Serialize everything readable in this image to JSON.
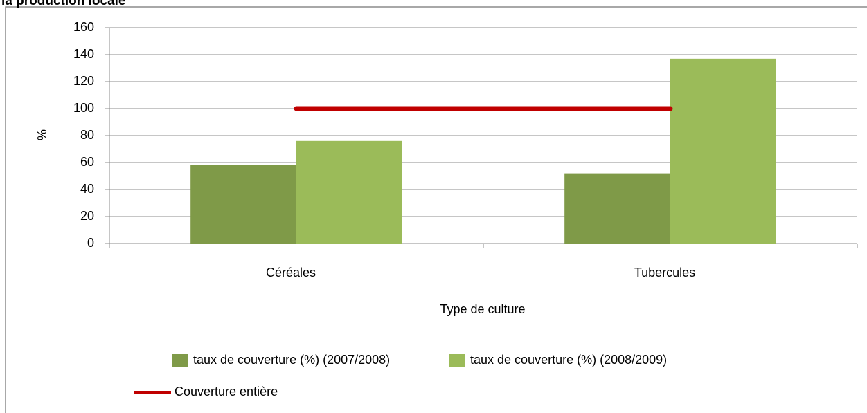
{
  "chart_data": {
    "type": "bar",
    "title": "la production locale",
    "categories": [
      "Céréales",
      "Tubercules"
    ],
    "series": [
      {
        "name": "taux de couverture (%) (2007/2008)",
        "color": "#7f9a48",
        "values": [
          58,
          52
        ]
      },
      {
        "name": "taux de couverture (%) (2008/2009)",
        "color": "#9bbb59",
        "values": [
          76,
          137
        ]
      },
      {
        "name": "Couverture entière",
        "type": "line",
        "color": "#c00000",
        "values": [
          100,
          100
        ]
      }
    ],
    "ylabel": "%",
    "xlabel": "Type de culture",
    "ylim": [
      0,
      160
    ],
    "yticks": [
      0,
      20,
      40,
      60,
      80,
      100,
      120,
      140,
      160
    ],
    "grid": true,
    "legend": "bottom"
  }
}
